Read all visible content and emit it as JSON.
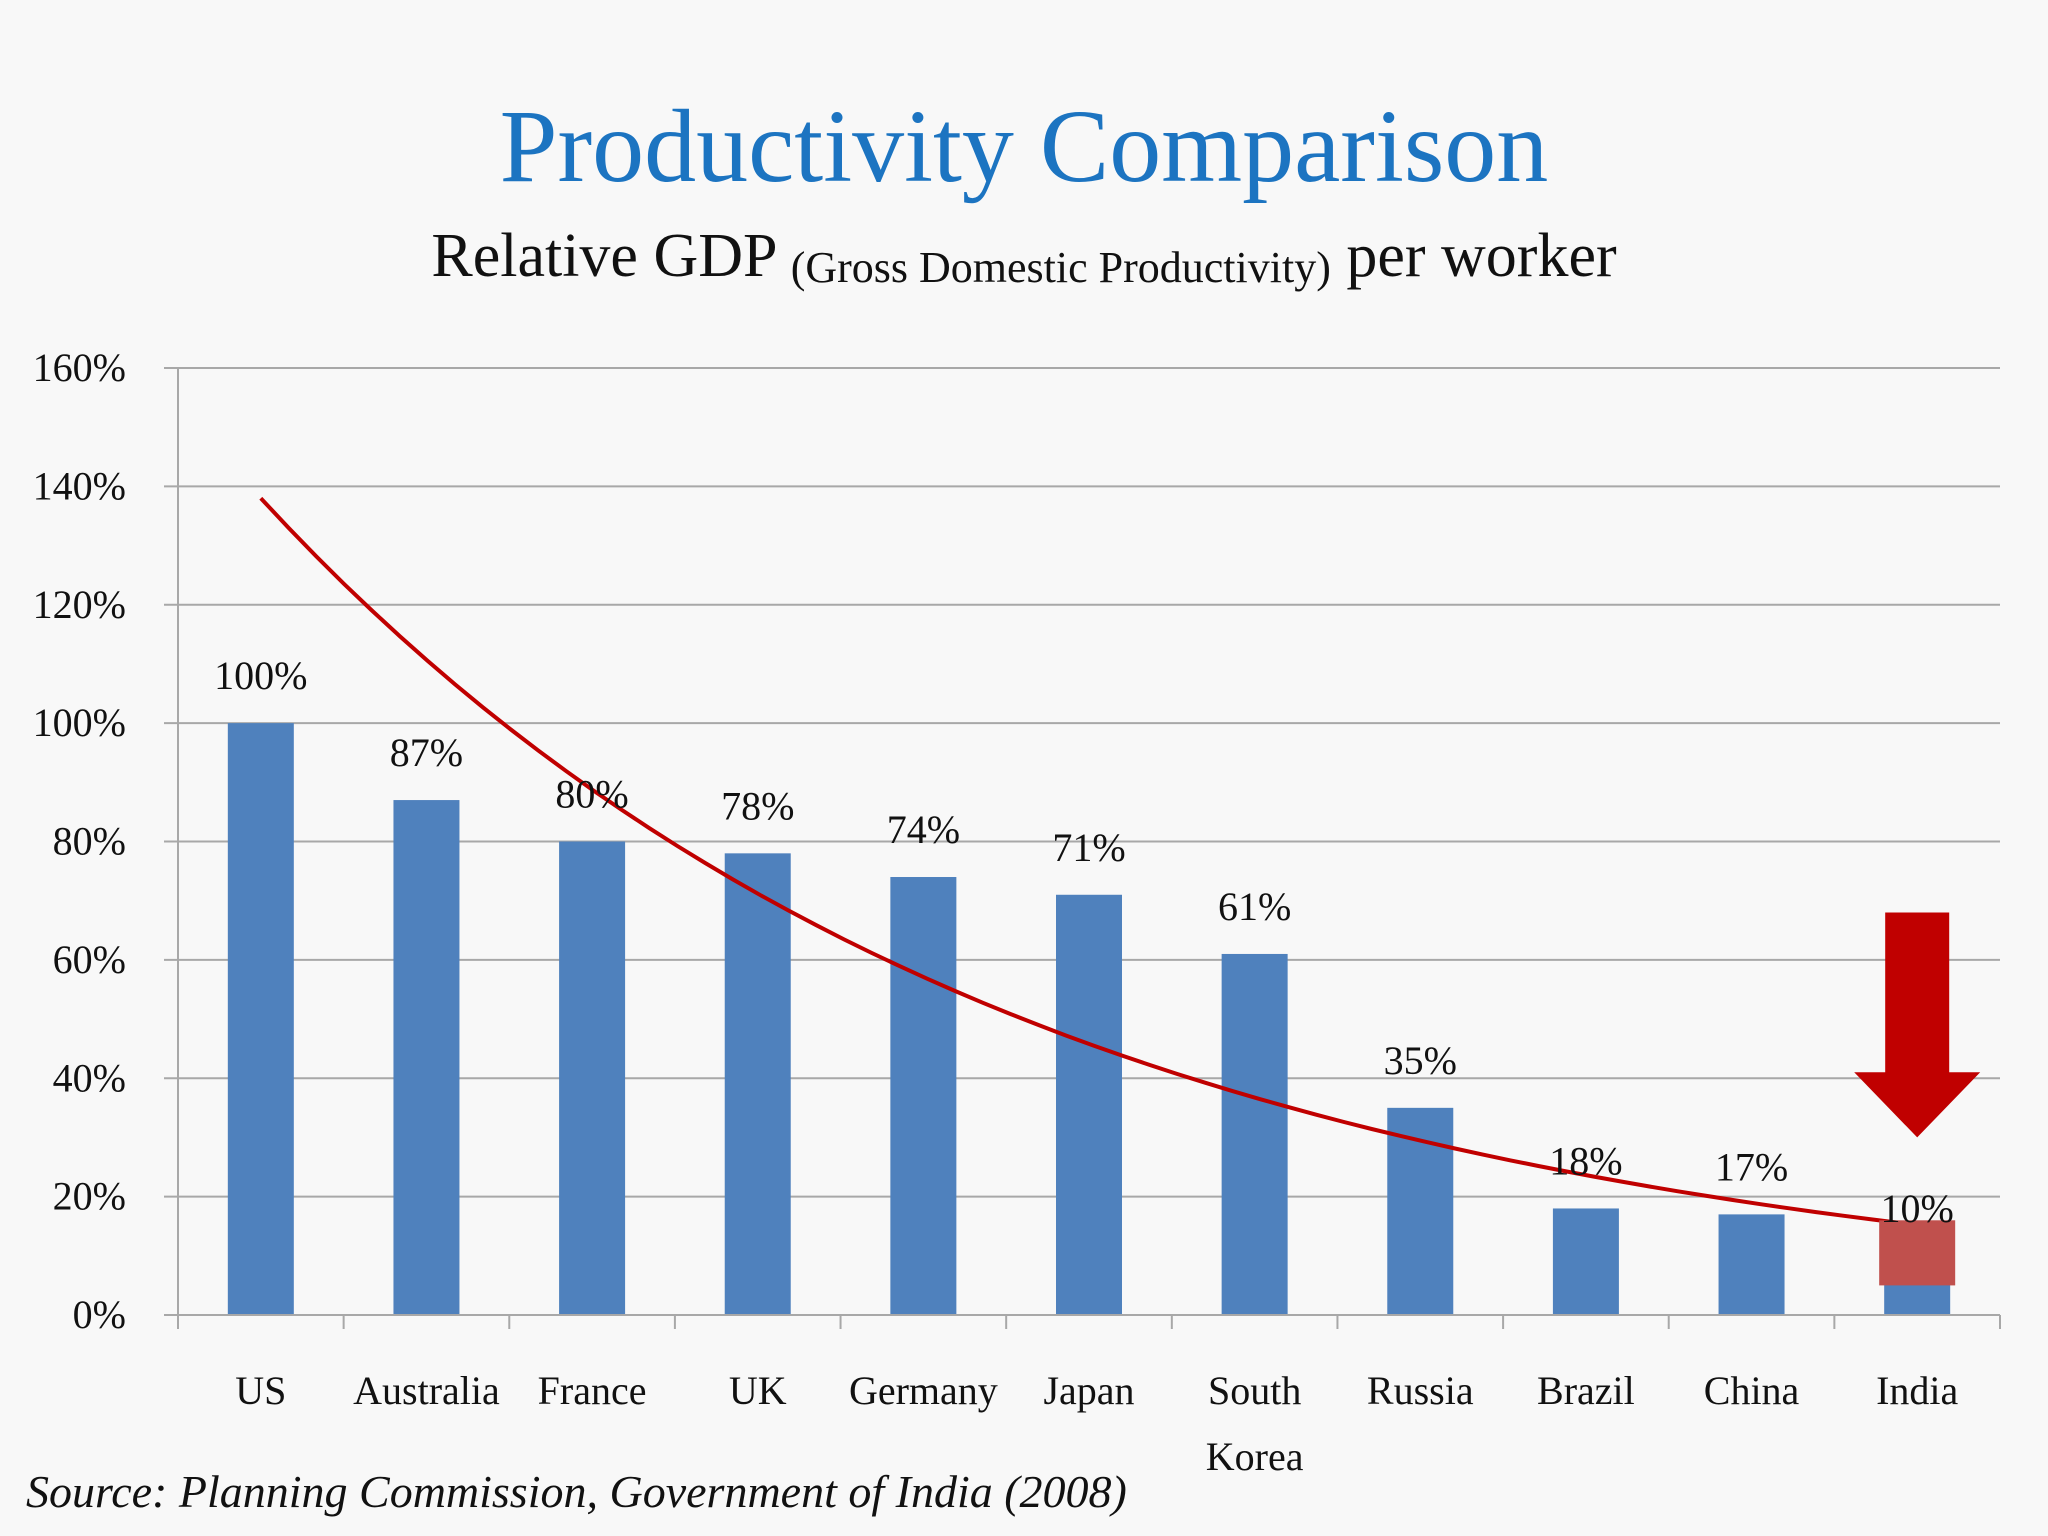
{
  "title": "Productivity Comparison",
  "subtitle": {
    "main_left": "Relative GDP",
    "paren": "(Gross Domestic Productivity)",
    "main_right": "per worker"
  },
  "source": "Source: Planning Commission, Government of India (2008)",
  "colors": {
    "title": "#1c74c1",
    "bar": "#4f81bd",
    "highlight": "#c0504d",
    "trend": "#c00000",
    "arrow": "#c00000",
    "grid": "#a8a8a8"
  },
  "chart_data": {
    "type": "bar",
    "title": "Productivity Comparison",
    "subtitle": "Relative GDP (Gross Domestic Productivity) per worker",
    "categories": [
      "US",
      "Australia",
      "France",
      "UK",
      "Germany",
      "Japan",
      "South Korea",
      "Russia",
      "Brazil",
      "China",
      "India"
    ],
    "category_lines": [
      [
        "US"
      ],
      [
        "Australia"
      ],
      [
        "France"
      ],
      [
        "UK"
      ],
      [
        "Germany"
      ],
      [
        "Japan"
      ],
      [
        "South",
        "Korea"
      ],
      [
        "Russia"
      ],
      [
        "Brazil"
      ],
      [
        "China"
      ],
      [
        "India"
      ]
    ],
    "values": [
      100,
      87,
      80,
      78,
      74,
      71,
      61,
      35,
      18,
      17,
      10
    ],
    "data_labels": [
      "100%",
      "87%",
      "80%",
      "78%",
      "74%",
      "71%",
      "61%",
      "35%",
      "18%",
      "17%",
      "10%"
    ],
    "ylim": [
      0,
      160
    ],
    "yticks": [
      0,
      20,
      40,
      60,
      80,
      100,
      120,
      140,
      160
    ],
    "ytick_labels": [
      "0%",
      "20%",
      "40%",
      "60%",
      "80%",
      "100%",
      "120%",
      "140%",
      "160%"
    ],
    "grid": true,
    "xlabel": "",
    "ylabel": "",
    "annotations": {
      "trend_curve": "exponential decline",
      "trend_start_value": 138,
      "trend_end_value": 15,
      "highlight_category": "India",
      "highlight_range": [
        5,
        16
      ],
      "down_arrow": "above India"
    }
  }
}
